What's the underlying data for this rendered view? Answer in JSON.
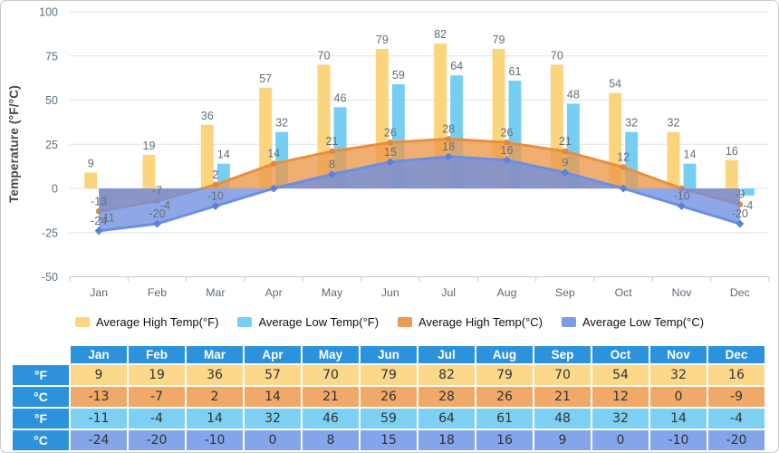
{
  "panel": {
    "background": "#ffffff",
    "border_color": "#c9c9c9"
  },
  "chart_data": {
    "type": "combo-bar-area",
    "title": "",
    "xlabel": "",
    "ylabel": "Temperature (°F/°C)",
    "ylim": [
      -50,
      100
    ],
    "y_ticks": [
      100,
      75,
      50,
      25,
      0,
      -25,
      -50
    ],
    "grid": "horizontal",
    "legend_position": "bottom",
    "categories": [
      "Jan",
      "Feb",
      "Mar",
      "Apr",
      "May",
      "Jun",
      "Jul",
      "Aug",
      "Sep",
      "Oct",
      "Nov",
      "Dec"
    ],
    "series": [
      {
        "name": "Average High Temp(°F)",
        "type": "bar",
        "color": "#FAD57E",
        "values": [
          9,
          19,
          36,
          57,
          70,
          79,
          82,
          79,
          70,
          54,
          32,
          16
        ]
      },
      {
        "name": "Average Low Temp(°F)",
        "type": "bar",
        "color": "#76CFF3",
        "values": [
          -11,
          -4,
          14,
          32,
          46,
          59,
          64,
          61,
          48,
          32,
          14,
          -4
        ]
      },
      {
        "name": "Average High Temp(°C)",
        "type": "area",
        "line_color": "#E78F3F",
        "fill_color": "rgba(238,154,78,0.8)",
        "marker": "circle",
        "marker_color": "#e2873b",
        "values": [
          -13,
          -7,
          2,
          14,
          21,
          26,
          28,
          26,
          21,
          12,
          0,
          -9
        ]
      },
      {
        "name": "Average Low Temp(°C)",
        "type": "area",
        "line_color": "#6B8FE3",
        "fill_color": "rgba(110,143,224,0.78)",
        "marker": "diamond",
        "marker_color": "#5d81d6",
        "values": [
          -24,
          -20,
          -10,
          0,
          8,
          15,
          18,
          16,
          9,
          0,
          -10,
          -20
        ]
      }
    ],
    "label_rule": "every point labeled except zero values"
  },
  "legend": {
    "items": [
      {
        "label": "Average High Temp(°F)",
        "color": "#FAD57E"
      },
      {
        "label": "Average Low Temp(°F)",
        "color": "#76CFF3"
      },
      {
        "label": "Average High Temp(°C)",
        "color": "#EB9B52"
      },
      {
        "label": "Average Low Temp(°C)",
        "color": "#7B9CE5"
      }
    ]
  },
  "table": {
    "header_bg": "#2B92DB",
    "header_text_color": "#ffffff",
    "columns": [
      "Jan",
      "Feb",
      "Mar",
      "Apr",
      "May",
      "Jun",
      "Jul",
      "Aug",
      "Sep",
      "Oct",
      "Nov",
      "Dec"
    ],
    "rows": [
      {
        "unit": "°F",
        "bg": "#FBD88A",
        "values": [
          9,
          19,
          36,
          57,
          70,
          79,
          82,
          79,
          70,
          54,
          32,
          16
        ]
      },
      {
        "unit": "°C",
        "bg": "#F0A969",
        "values": [
          -13,
          -7,
          2,
          14,
          21,
          26,
          28,
          26,
          21,
          12,
          0,
          -9
        ]
      },
      {
        "unit": "°F",
        "bg": "#7DD0F2",
        "values": [
          -11,
          -4,
          14,
          32,
          46,
          59,
          64,
          61,
          48,
          32,
          14,
          -4
        ]
      },
      {
        "unit": "°C",
        "bg": "#84A5E9",
        "values": [
          -24,
          -20,
          -10,
          0,
          8,
          15,
          18,
          16,
          9,
          0,
          -10,
          -20
        ]
      }
    ]
  }
}
